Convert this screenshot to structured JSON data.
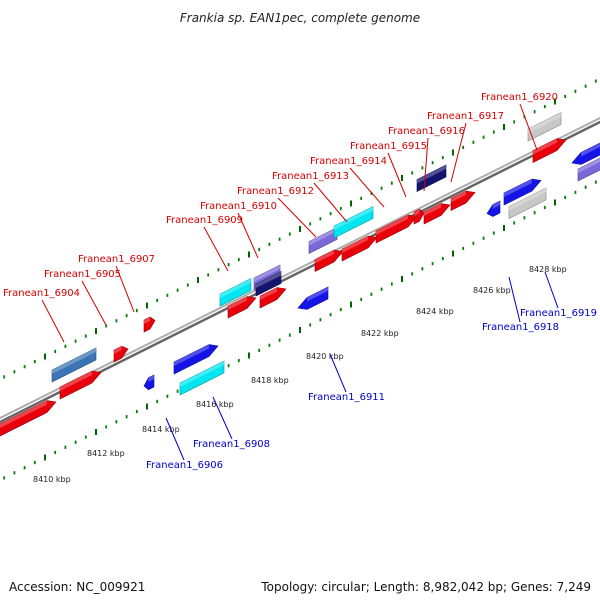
{
  "title": "Frankia sp. EAN1pec, complete genome",
  "footer": {
    "accession": "Accession: NC_009921",
    "summary": "Topology: circular; Length: 8,982,042 bp; Genes: 7,249"
  },
  "colors": {
    "forward_label": "#d40000",
    "reverse_label": "#0000c8",
    "backbone": "#808080",
    "tick_major": "#006400",
    "tick_minor": "#0a7a0a",
    "gene_red": "#e8000a",
    "gene_blue": "#1414e6",
    "gene_cyan": "#00e6f0",
    "gene_steel": "#3a74b4",
    "gene_lavender": "#7b68d8",
    "gene_navy": "#14146e",
    "gene_gray": "#c8c8c8"
  },
  "scale": {
    "unit": "kbp",
    "tick_labels": [
      "8410 kbp",
      "8412 kbp",
      "8414 kbp",
      "8416 kbp",
      "8418 kbp",
      "8420 kbp",
      "8422 kbp",
      "8424 kbp",
      "8426 kbp",
      "8428 kbp"
    ]
  },
  "forward_labels": [
    "Franean1_6904",
    "Franean1_6905",
    "Franean1_6907",
    "Franean1_6909",
    "Franean1_6910",
    "Franean1_6912",
    "Franean1_6913",
    "Franean1_6914",
    "Franean1_6915",
    "Franean1_6916",
    "Franean1_6917",
    "Franean1_6920"
  ],
  "reverse_labels": [
    "Franean1_6906",
    "Franean1_6908",
    "Franean1_6911",
    "Franean1_6918",
    "Franean1_6919"
  ]
}
